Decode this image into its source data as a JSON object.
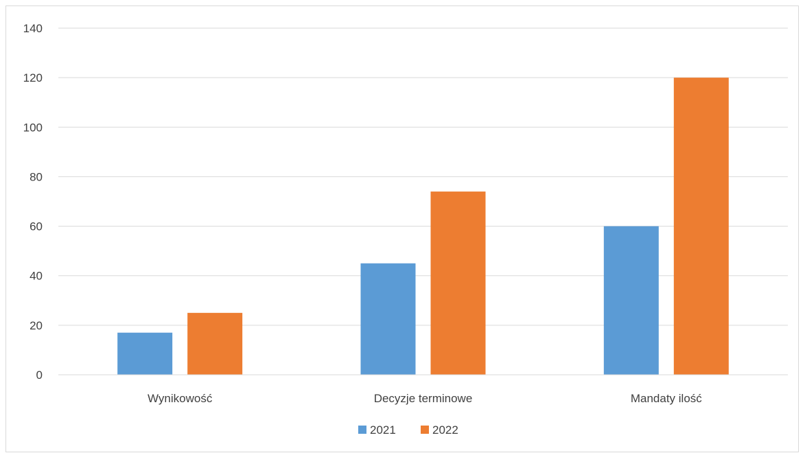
{
  "chart_data": {
    "type": "bar",
    "title": "",
    "xlabel": "",
    "ylabel": "",
    "categories": [
      "Wynikowość",
      "Decyzje terminowe",
      "Mandaty ilość"
    ],
    "series": [
      {
        "name": "2021",
        "values": [
          17,
          45,
          60
        ],
        "color": "#5b9bd5"
      },
      {
        "name": "2022",
        "values": [
          25,
          74,
          120
        ],
        "color": "#ed7d31"
      }
    ],
    "ylim": [
      0,
      140
    ],
    "yticks": [
      0,
      20,
      40,
      60,
      80,
      100,
      120,
      140
    ],
    "grid": true,
    "gridline_color": "#d9d9d9",
    "legend_position": "bottom"
  }
}
